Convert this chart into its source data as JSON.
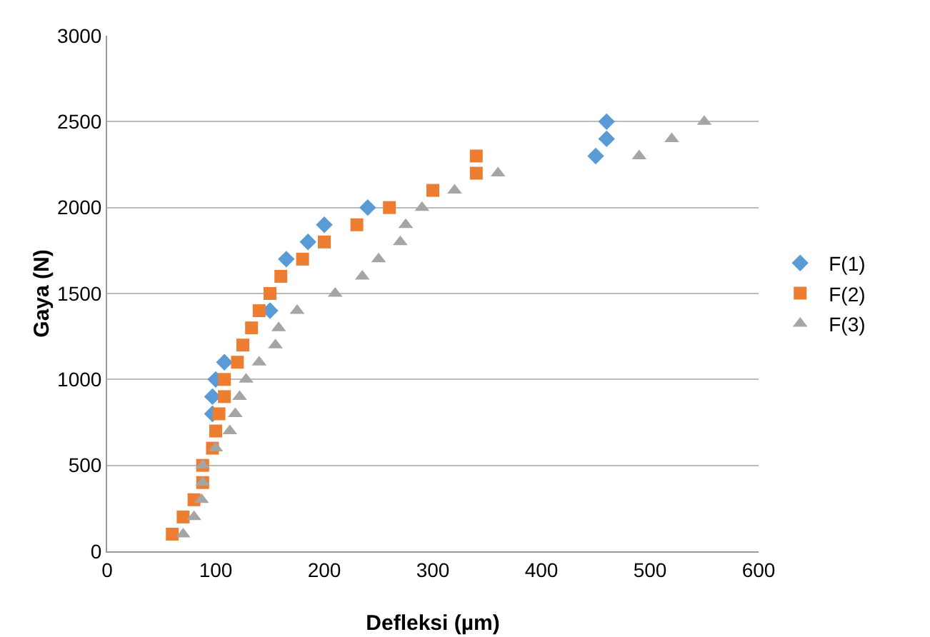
{
  "chart_data": {
    "type": "scatter",
    "xlabel": "Defleksi (µm)",
    "ylabel": "Gaya (N)",
    "xlim": [
      0,
      600
    ],
    "xticks": [
      0,
      100,
      200,
      300,
      400,
      500,
      600
    ],
    "ylim": [
      0,
      3000
    ],
    "yticks": [
      0,
      500,
      1000,
      1500,
      2000,
      2500,
      3000
    ],
    "grid": "y",
    "legend": "right",
    "series": [
      {
        "name": "F(1)",
        "color": "#5b9bd5",
        "marker": "diamond",
        "x": [
          97,
          97,
          100,
          108,
          150,
          165,
          185,
          200,
          240,
          450,
          460,
          460
        ],
        "values": [
          800,
          900,
          1000,
          1100,
          1400,
          1700,
          1800,
          1900,
          2000,
          2300,
          2400,
          2500
        ]
      },
      {
        "name": "F(2)",
        "color": "#ed7d31",
        "marker": "square",
        "x": [
          60,
          70,
          80,
          88,
          88,
          97,
          100,
          103,
          108,
          108,
          120,
          125,
          133,
          140,
          150,
          160,
          180,
          200,
          230,
          260,
          300,
          340,
          340
        ],
        "values": [
          100,
          200,
          300,
          400,
          500,
          600,
          700,
          800,
          900,
          1000,
          1100,
          1200,
          1300,
          1400,
          1500,
          1600,
          1700,
          1800,
          1900,
          2000,
          2100,
          2200,
          2300
        ]
      },
      {
        "name": "F(3)",
        "color": "#a5a5a5",
        "marker": "triangle",
        "x": [
          70,
          80,
          87,
          88,
          88,
          100,
          113,
          118,
          122,
          128,
          140,
          155,
          158,
          175,
          210,
          235,
          250,
          270,
          275,
          290,
          320,
          360,
          490,
          520,
          550
        ],
        "values": [
          100,
          200,
          300,
          400,
          500,
          600,
          700,
          800,
          900,
          1000,
          1100,
          1200,
          1300,
          1400,
          1500,
          1600,
          1700,
          1800,
          1900,
          2000,
          2100,
          2200,
          2300,
          2400,
          2500
        ]
      }
    ]
  }
}
